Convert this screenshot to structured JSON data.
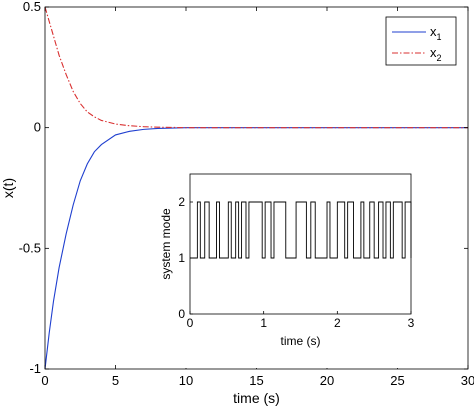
{
  "chart_data": [
    {
      "type": "line",
      "title": "",
      "xlabel": "time (s)",
      "ylabel": "x(t)",
      "xlim": [
        0,
        30
      ],
      "ylim": [
        -1,
        0.5
      ],
      "x_ticks": [
        0,
        5,
        10,
        15,
        20,
        25,
        30
      ],
      "y_ticks": [
        -1,
        -0.5,
        0,
        0.5
      ],
      "x_tick_labels": [
        "0",
        "5",
        "10",
        "15",
        "20",
        "25",
        "30"
      ],
      "y_tick_labels": [
        "-1",
        "-0.5",
        "0",
        "0.5"
      ],
      "grid": false,
      "legend_position": "top-right",
      "series": [
        {
          "name": "x",
          "name_subscript": "1",
          "color": "#1f3fcf",
          "style": "solid",
          "x": [
            0,
            0.3,
            0.6,
            1.0,
            1.5,
            2.0,
            2.5,
            3.0,
            3.5,
            4.0,
            5.0,
            6.0,
            7.0,
            8.0,
            10.0,
            15.0,
            20.0,
            25.0,
            30.0
          ],
          "y": [
            -1.0,
            -0.85,
            -0.72,
            -0.58,
            -0.44,
            -0.32,
            -0.22,
            -0.15,
            -0.1,
            -0.07,
            -0.03,
            -0.015,
            -0.007,
            -0.003,
            0,
            0,
            0,
            0,
            0
          ]
        },
        {
          "name": "x",
          "name_subscript": "2",
          "color": "#d93030",
          "style": "dashdot",
          "x": [
            0,
            0.3,
            0.6,
            1.0,
            1.5,
            2.0,
            2.5,
            3.0,
            3.5,
            4.0,
            5.0,
            6.0,
            7.0,
            8.0,
            10.0,
            15.0,
            20.0,
            25.0,
            30.0
          ],
          "y": [
            0.5,
            0.44,
            0.38,
            0.3,
            0.22,
            0.15,
            0.1,
            0.065,
            0.045,
            0.03,
            0.015,
            0.008,
            0.004,
            0.002,
            0,
            0,
            0,
            0,
            0
          ]
        }
      ]
    },
    {
      "type": "line",
      "title": "",
      "xlabel": "time (s)",
      "ylabel": "system mode",
      "xlim": [
        0,
        3
      ],
      "ylim": [
        0,
        2.5
      ],
      "x_ticks": [
        0,
        1,
        2,
        3
      ],
      "y_ticks": [
        0,
        1,
        2
      ],
      "x_tick_labels": [
        "0",
        "1",
        "2",
        "3"
      ],
      "y_tick_labels": [
        "0",
        "1",
        "2"
      ],
      "grid": false,
      "series": [
        {
          "color": "#000000",
          "style": "step",
          "x": [
            0,
            0.1,
            0.14,
            0.2,
            0.26,
            0.36,
            0.4,
            0.52,
            0.56,
            0.62,
            0.66,
            0.7,
            0.76,
            0.8,
            0.98,
            1.02,
            1.1,
            1.14,
            1.3,
            1.44,
            1.58,
            1.64,
            1.7,
            1.86,
            1.9,
            2.0,
            2.1,
            2.14,
            2.22,
            2.32,
            2.36,
            2.44,
            2.5,
            2.56,
            2.62,
            2.66,
            2.72,
            2.76,
            2.88,
            2.92,
            3.0
          ],
          "y": [
            1,
            2,
            1,
            2,
            1,
            2,
            1,
            2,
            1,
            2,
            1,
            2,
            1,
            2,
            1,
            2,
            1,
            2,
            1,
            2,
            1,
            2,
            1,
            2,
            1,
            2,
            1,
            2,
            1,
            2,
            1,
            2,
            1,
            2,
            1,
            2,
            1,
            2,
            1,
            2,
            1
          ]
        }
      ]
    }
  ]
}
